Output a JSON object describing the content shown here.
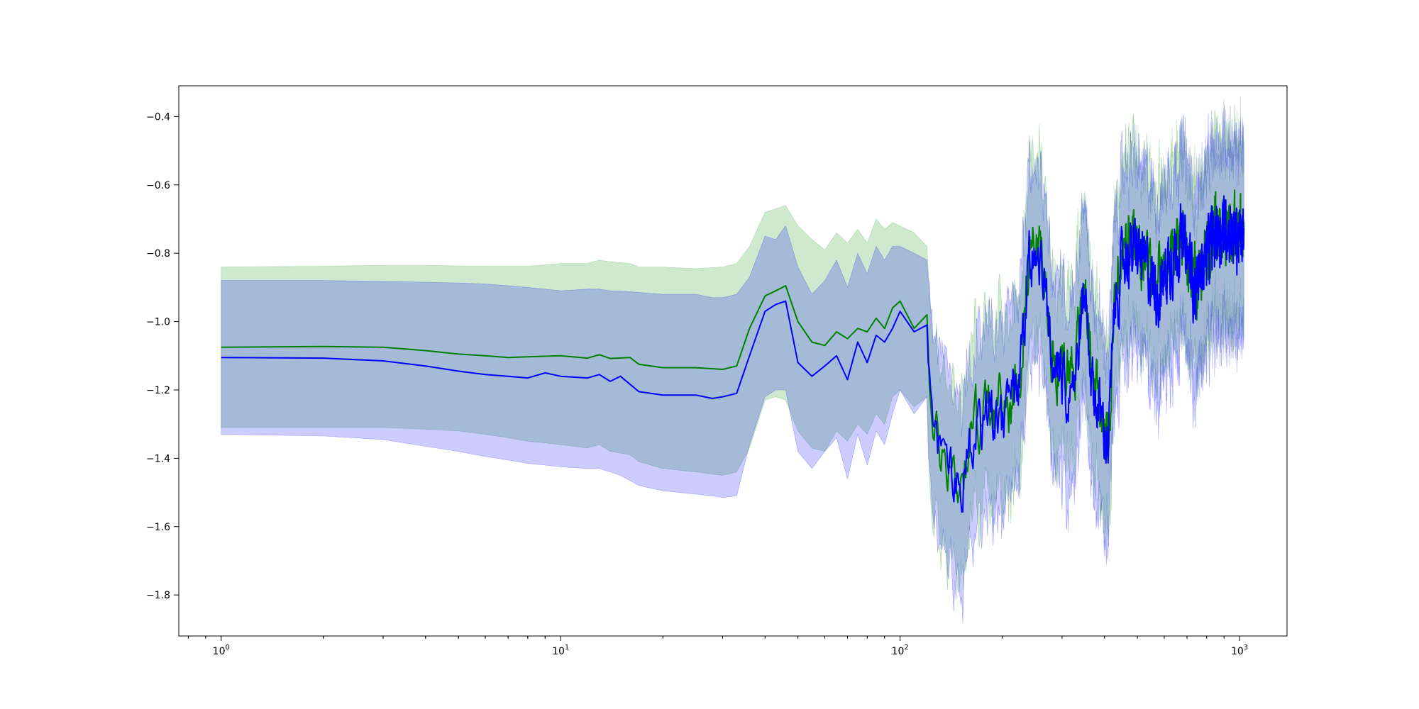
{
  "chart_data": {
    "type": "line",
    "title": "",
    "xlabel": "",
    "ylabel": "",
    "xscale": "log",
    "xlim": [
      0.75,
      1380
    ],
    "ylim": [
      -1.92,
      -0.31
    ],
    "grid": false,
    "legend": "none",
    "x_ticks": [
      {
        "base": "10",
        "exp": "0",
        "value": 1
      },
      {
        "base": "10",
        "exp": "1",
        "value": 10
      },
      {
        "base": "10",
        "exp": "2",
        "value": 100
      },
      {
        "base": "10",
        "exp": "3",
        "value": 1000
      }
    ],
    "y_ticks": [
      {
        "label": "−0.4",
        "value": -0.4
      },
      {
        "label": "−0.6",
        "value": -0.6
      },
      {
        "label": "−0.8",
        "value": -0.8
      },
      {
        "label": "−1.0",
        "value": -1.0
      },
      {
        "label": "−1.2",
        "value": -1.2
      },
      {
        "label": "−1.4",
        "value": -1.4
      },
      {
        "label": "−1.6",
        "value": -1.6
      },
      {
        "label": "−1.8",
        "value": -1.8
      }
    ],
    "series": [
      {
        "color": "#008000",
        "band_color": "#2ca02c",
        "band_opacity": 0.23,
        "x": [
          1,
          2,
          3,
          4,
          5,
          6,
          7,
          8,
          10,
          12,
          13,
          14,
          16,
          17,
          20,
          25,
          30,
          33,
          36,
          40,
          43,
          46,
          50,
          55,
          60,
          65,
          70,
          75,
          80,
          85,
          90,
          95,
          100,
          110,
          120
        ],
        "mean": [
          -1.075,
          -1.073,
          -1.075,
          -1.085,
          -1.095,
          -1.1,
          -1.105,
          -1.103,
          -1.1,
          -1.107,
          -1.097,
          -1.108,
          -1.105,
          -1.125,
          -1.135,
          -1.135,
          -1.14,
          -1.13,
          -1.02,
          -0.925,
          -0.91,
          -0.895,
          -1.0,
          -1.06,
          -1.07,
          -1.03,
          -1.05,
          -1.02,
          -1.03,
          -0.99,
          -1.02,
          -0.96,
          -0.94,
          -1.02,
          -0.98
        ],
        "upper": [
          -0.84,
          -0.838,
          -0.835,
          -0.835,
          -0.837,
          -0.838,
          -0.838,
          -0.838,
          -0.83,
          -0.83,
          -0.82,
          -0.825,
          -0.83,
          -0.84,
          -0.84,
          -0.845,
          -0.84,
          -0.83,
          -0.78,
          -0.68,
          -0.67,
          -0.66,
          -0.72,
          -0.76,
          -0.79,
          -0.74,
          -0.77,
          -0.73,
          -0.77,
          -0.7,
          -0.73,
          -0.71,
          -0.72,
          -0.74,
          -0.78
        ],
        "lower": [
          -1.31,
          -1.31,
          -1.31,
          -1.315,
          -1.32,
          -1.33,
          -1.34,
          -1.35,
          -1.36,
          -1.37,
          -1.36,
          -1.38,
          -1.39,
          -1.41,
          -1.43,
          -1.44,
          -1.45,
          -1.44,
          -1.37,
          -1.23,
          -1.22,
          -1.23,
          -1.32,
          -1.37,
          -1.38,
          -1.32,
          -1.35,
          -1.3,
          -1.33,
          -1.27,
          -1.3,
          -1.22,
          -1.2,
          -1.25,
          -1.22
        ]
      },
      {
        "color": "#0000ff",
        "band_color": "#0000ff",
        "band_opacity": 0.2,
        "x": [
          1,
          2,
          3,
          4,
          5,
          6,
          7,
          8,
          9,
          10,
          12,
          13,
          14,
          15,
          17,
          20,
          25,
          28,
          30,
          33,
          36,
          40,
          43,
          46,
          50,
          55,
          60,
          65,
          70,
          75,
          80,
          85,
          90,
          95,
          100,
          110,
          120
        ],
        "mean": [
          -1.105,
          -1.107,
          -1.115,
          -1.13,
          -1.145,
          -1.155,
          -1.16,
          -1.165,
          -1.15,
          -1.16,
          -1.165,
          -1.155,
          -1.175,
          -1.16,
          -1.205,
          -1.215,
          -1.215,
          -1.225,
          -1.22,
          -1.21,
          -1.1,
          -0.97,
          -0.95,
          -0.94,
          -1.12,
          -1.16,
          -1.13,
          -1.1,
          -1.17,
          -1.06,
          -1.12,
          -1.04,
          -1.06,
          -1.02,
          -0.97,
          -1.03,
          -1.01
        ],
        "upper": [
          -0.88,
          -0.88,
          -0.882,
          -0.885,
          -0.887,
          -0.89,
          -0.895,
          -0.9,
          -0.905,
          -0.91,
          -0.905,
          -0.905,
          -0.91,
          -0.91,
          -0.915,
          -0.92,
          -0.92,
          -0.93,
          -0.93,
          -0.92,
          -0.87,
          -0.75,
          -0.76,
          -0.72,
          -0.84,
          -0.92,
          -0.88,
          -0.82,
          -0.9,
          -0.8,
          -0.86,
          -0.78,
          -0.82,
          -0.78,
          -0.78,
          -0.8,
          -0.82
        ],
        "lower": [
          -1.33,
          -1.335,
          -1.345,
          -1.365,
          -1.38,
          -1.395,
          -1.405,
          -1.415,
          -1.42,
          -1.425,
          -1.43,
          -1.43,
          -1.44,
          -1.45,
          -1.48,
          -1.495,
          -1.505,
          -1.51,
          -1.515,
          -1.51,
          -1.36,
          -1.22,
          -1.2,
          -1.2,
          -1.38,
          -1.43,
          -1.38,
          -1.34,
          -1.46,
          -1.33,
          -1.42,
          -1.32,
          -1.36,
          -1.27,
          -1.2,
          -1.27,
          -1.22
        ]
      }
    ]
  }
}
